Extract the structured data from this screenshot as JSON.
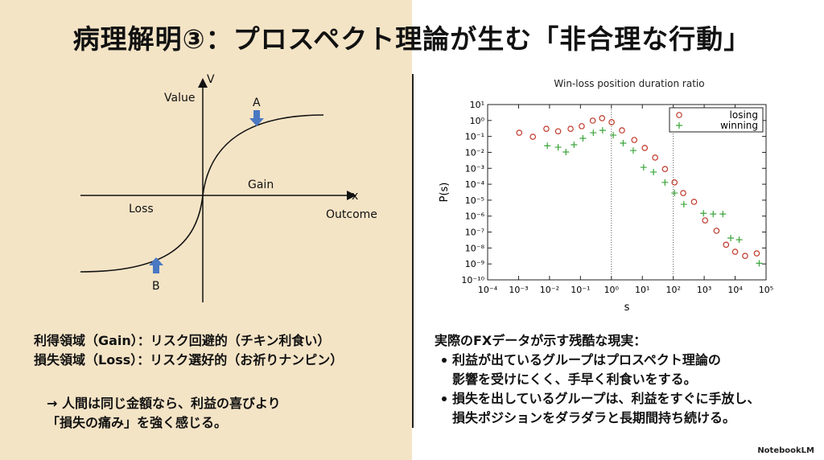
{
  "title": "病理解明③：プロスペクト理論が生む「非合理な行動」",
  "diagram": {
    "y_axis_letter": "V",
    "y_axis_label": "Value",
    "x_axis_letter": "x",
    "x_axis_label": "Outcome",
    "gain": "Gain",
    "loss": "Loss",
    "point_a": "A",
    "point_b": "B"
  },
  "left_text": {
    "lines": [
      "利得領域（Gain）：リスク回避的（チキン利食い）",
      "損失領域（Loss）：リスク選好的（お祈りナンピン）"
    ],
    "conclusion": [
      "→ 人間は同じ金額なら、利益の喜びより",
      "「損失の痛み」を強く感じる。"
    ]
  },
  "right_text": {
    "heading": "実際のFXデータが示す残酷な現実：",
    "bullets": [
      [
        "利益が出ているグループはプロスペクト理論の",
        "影響を受けにくく、手早く利食いをする。"
      ],
      [
        "損失を出しているグループは、利益をすぐに手放し、",
        "損失ポジションをダラダラと長期間持ち続ける。"
      ]
    ]
  },
  "brand": "NotebookLM",
  "chart_data": {
    "type": "scatter",
    "title": "Win-loss position duration ratio",
    "xlabel": "s",
    "ylabel": "P(s)",
    "xlog": true,
    "ylog": true,
    "xlim": [
      0.0001,
      100000.0
    ],
    "ylim": [
      1e-10,
      10.0
    ],
    "xticks": [
      {
        "value": 0.0001,
        "label": "10⁻⁴"
      },
      {
        "value": 0.001,
        "label": "10⁻³"
      },
      {
        "value": 0.01,
        "label": "10⁻²"
      },
      {
        "value": 0.1,
        "label": "10⁻¹"
      },
      {
        "value": 1,
        "label": "10⁰"
      },
      {
        "value": 10,
        "label": "10¹"
      },
      {
        "value": 100,
        "label": "10²"
      },
      {
        "value": 1000,
        "label": "10³"
      },
      {
        "value": 10000,
        "label": "10⁴"
      },
      {
        "value": 100000,
        "label": "10⁵"
      }
    ],
    "yticks": [
      {
        "value": 1e-10,
        "label": "10⁻¹⁰"
      },
      {
        "value": 1e-09,
        "label": "10⁻⁹"
      },
      {
        "value": 1e-08,
        "label": "10⁻⁸"
      },
      {
        "value": 1e-07,
        "label": "10⁻⁷"
      },
      {
        "value": 1e-06,
        "label": "10⁻⁶"
      },
      {
        "value": 1e-05,
        "label": "10⁻⁵"
      },
      {
        "value": 0.0001,
        "label": "10⁻⁴"
      },
      {
        "value": 0.001,
        "label": "10⁻³"
      },
      {
        "value": 0.01,
        "label": "10⁻²"
      },
      {
        "value": 0.1,
        "label": "10⁻¹"
      },
      {
        "value": 1,
        "label": "10⁰"
      },
      {
        "value": 10,
        "label": "10¹"
      }
    ],
    "vlines": [
      1,
      100
    ],
    "legend": "upper right",
    "series": [
      {
        "name": "losing",
        "color": "#c0392b",
        "marker": "circle",
        "x": [
          0.00105,
          0.0029,
          0.0079,
          0.019,
          0.048,
          0.11,
          0.25,
          0.5,
          1.02,
          2.2,
          5.5,
          12,
          26,
          54,
          110,
          210,
          470,
          1070,
          2500,
          5100,
          10000.0,
          21000.0,
          50000.0
        ],
        "values": [
          0.17,
          0.095,
          0.3,
          0.21,
          0.3,
          0.44,
          0.98,
          1.4,
          0.78,
          0.24,
          0.06,
          0.019,
          0.0047,
          0.0009,
          0.00013,
          2.8e-05,
          7.9e-06,
          5.4e-07,
          1.2e-07,
          1.6e-08,
          5.8e-09,
          3.2e-09,
          4.6e-09
        ]
      },
      {
        "name": "winning",
        "color": "#3aa53a",
        "marker": "plus",
        "x": [
          0.0085,
          0.019,
          0.034,
          0.062,
          0.12,
          0.26,
          0.52,
          1.15,
          2.4,
          5.1,
          11,
          23,
          54,
          110,
          220,
          950,
          1950,
          4000,
          7200,
          13500.0,
          60000.0
        ],
        "values": [
          0.026,
          0.021,
          0.0105,
          0.03,
          0.076,
          0.17,
          0.24,
          0.12,
          0.038,
          0.013,
          0.00115,
          0.00058,
          0.00013,
          2.8e-05,
          5.5e-06,
          1.5e-06,
          1.35e-06,
          1.35e-06,
          4.2e-08,
          3.3e-08,
          1.1e-09
        ]
      }
    ]
  }
}
